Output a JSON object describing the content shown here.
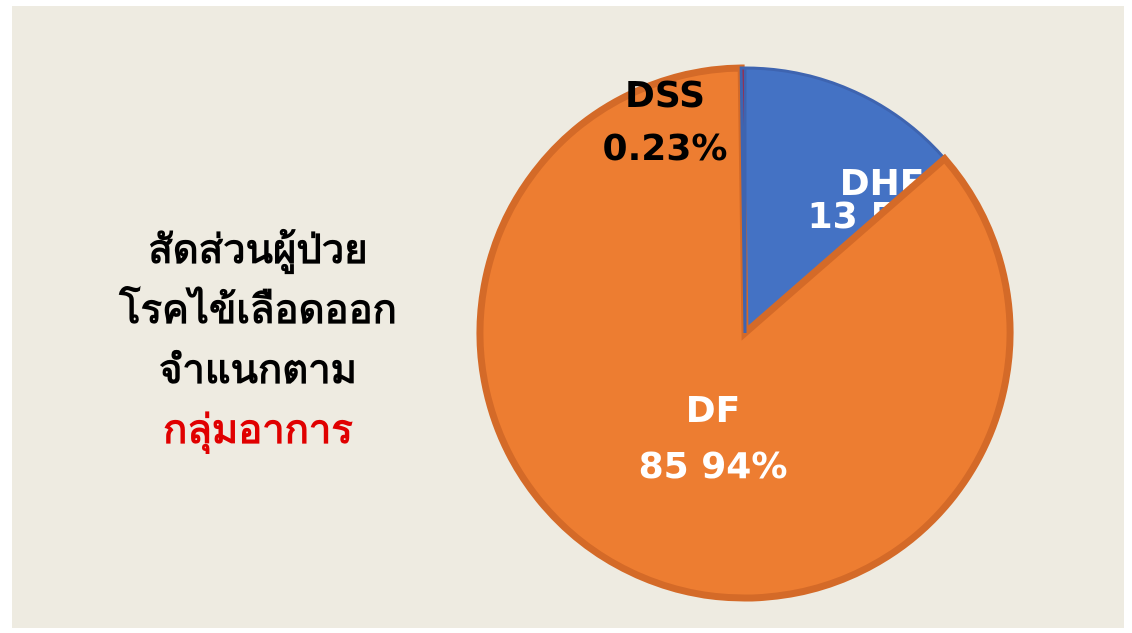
{
  "chart_data": {
    "type": "pie",
    "title_lines": [
      "สัดส่วนผู้ป่วย",
      "โรคไข้เลือดออก",
      "จำแนกตาม",
      "กลุ่มอาการ"
    ],
    "title_colors": [
      "#000000",
      "#000000",
      "#000000",
      "#e00000"
    ],
    "categories": [
      "DHF",
      "DF",
      "DSS"
    ],
    "values": [
      13.54,
      85.94,
      0.23
    ],
    "value_labels": [
      "13 54%",
      "85 94%",
      "0.23%"
    ],
    "colors": [
      "#4472c4",
      "#ed7d31",
      "#e00000"
    ],
    "label_colors": [
      "#ffffff",
      "#ffffff",
      "#000000"
    ]
  }
}
